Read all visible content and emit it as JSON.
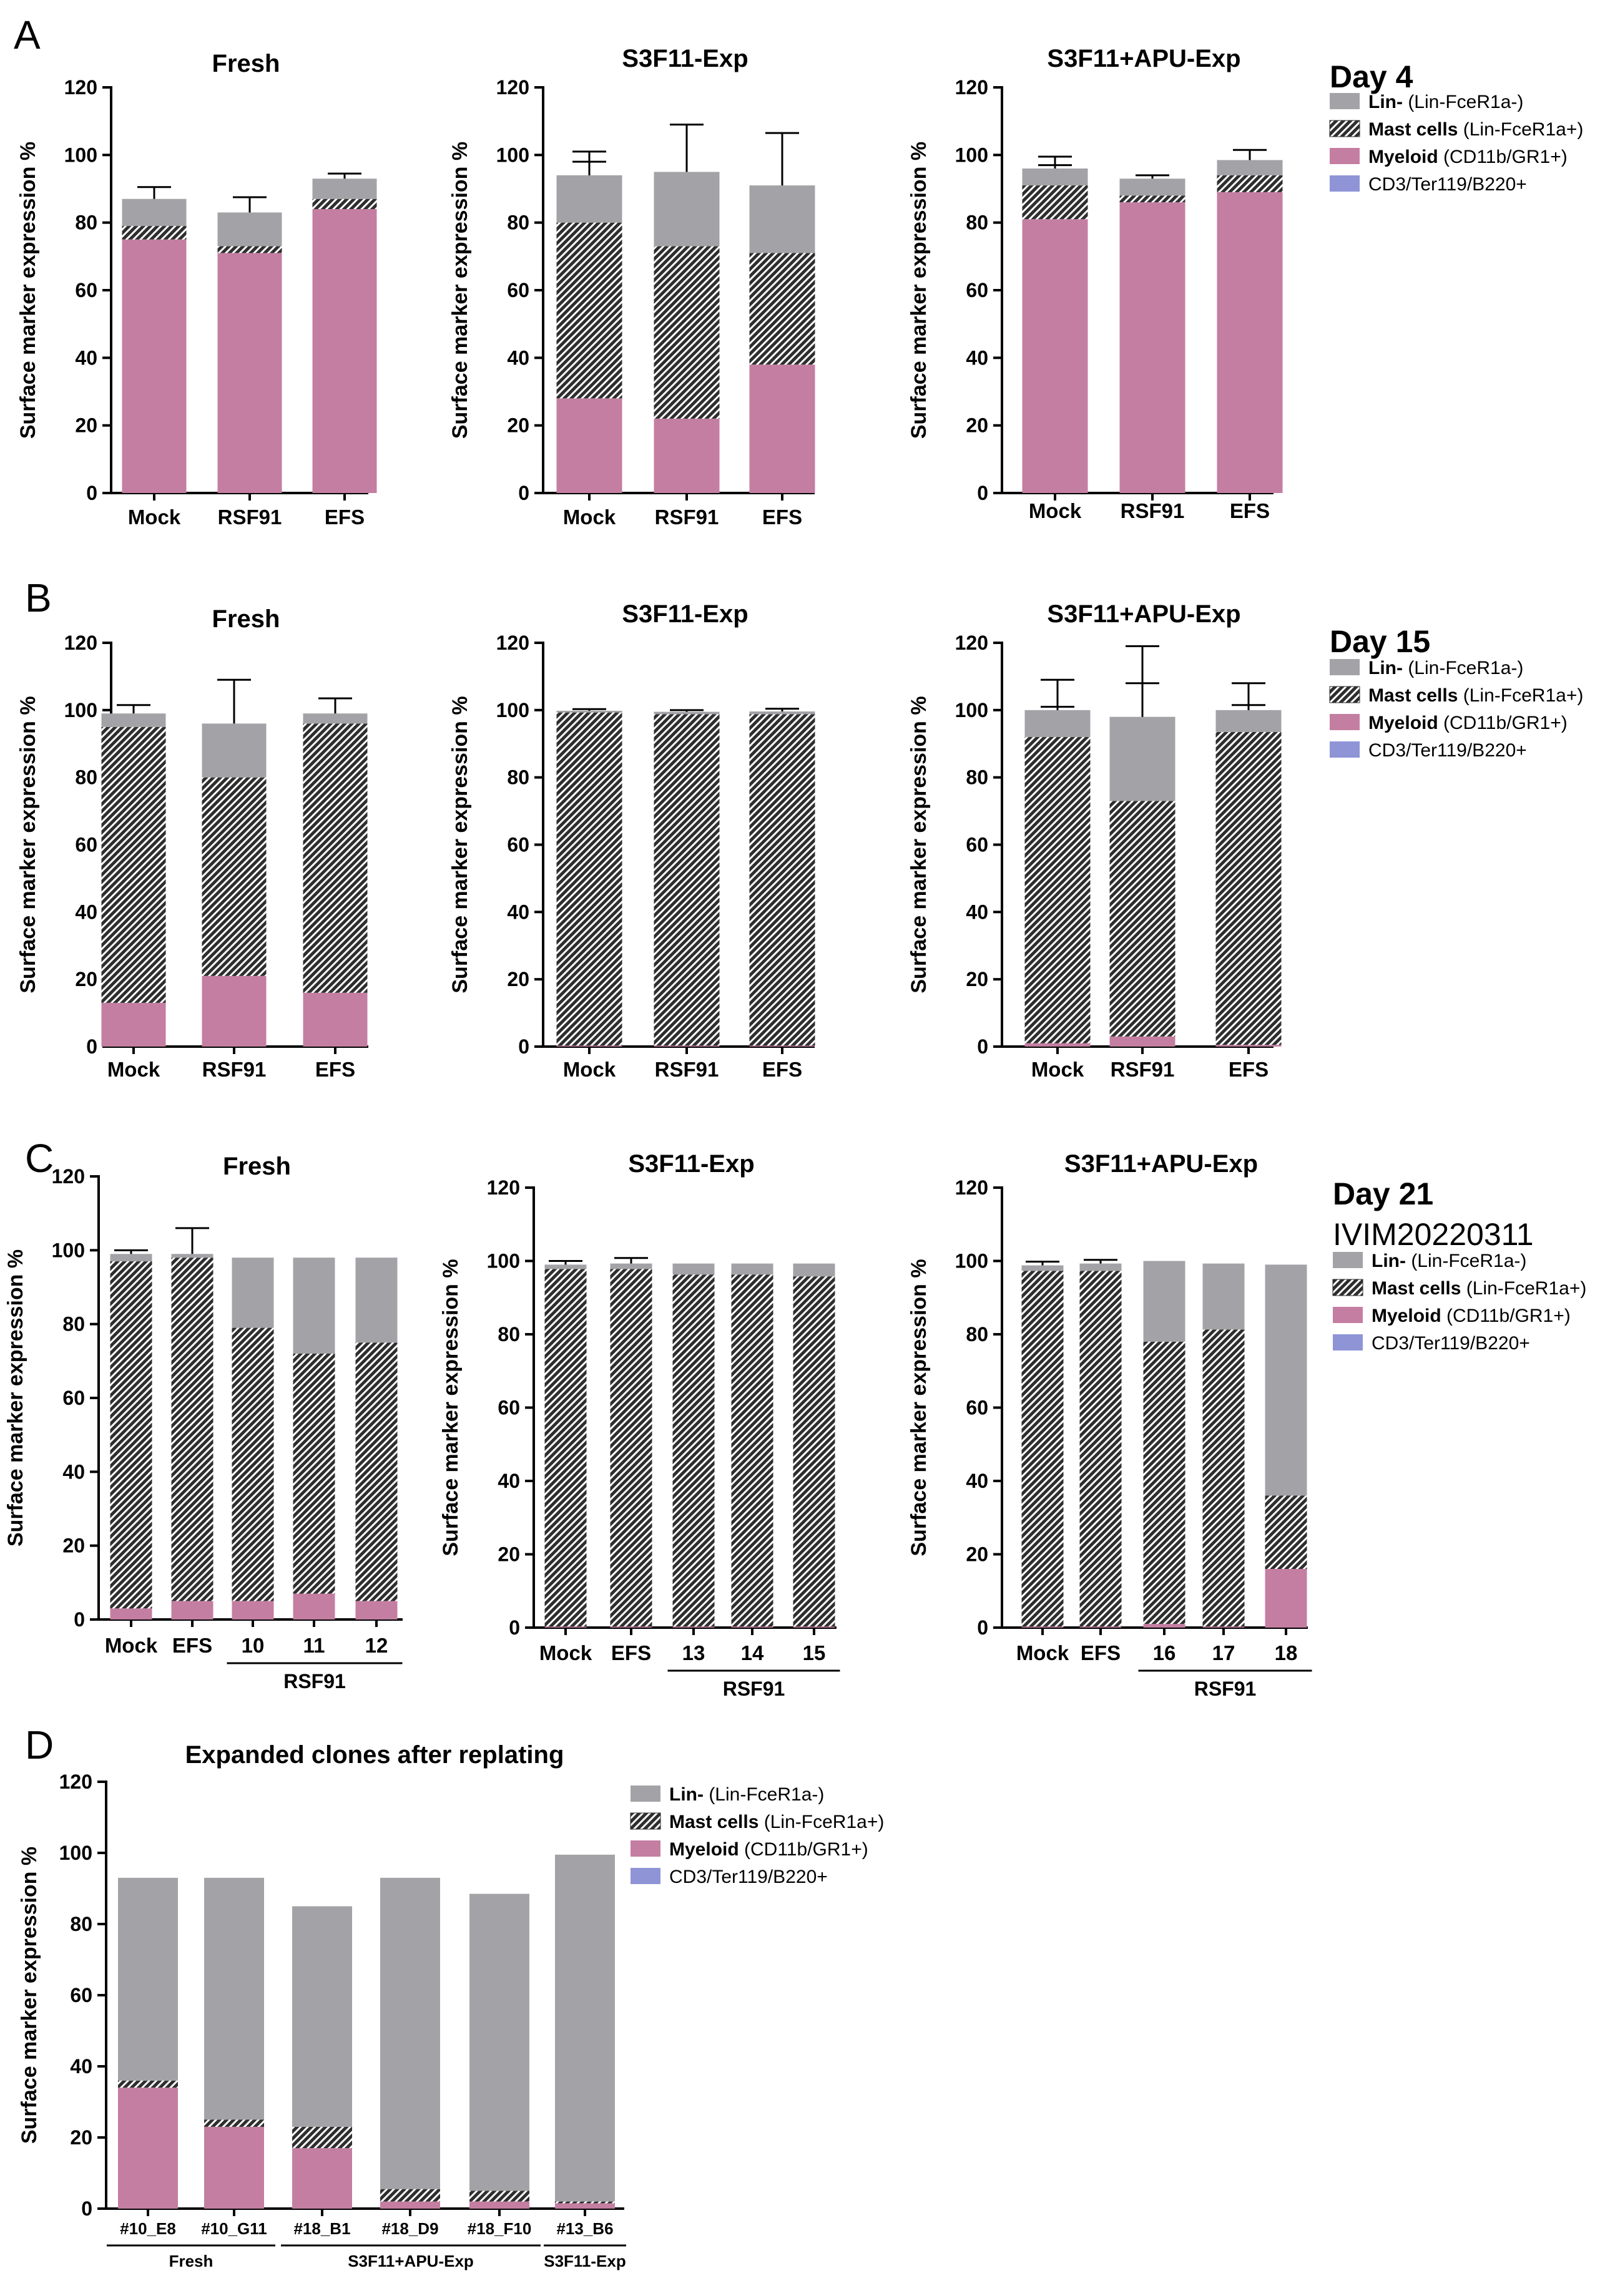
{
  "colors": {
    "lin_neg": "#A3A3A7",
    "mast": "#2E2E2E",
    "myeloid": "#C47EA1",
    "cd3": "#8E94D6",
    "axis": "#000000"
  },
  "legend_entries": [
    {
      "bold": "Lin-",
      "rest": " (Lin-FceR1a-)"
    },
    {
      "bold": "Mast cells",
      "rest": " (Lin-FceR1a+)"
    },
    {
      "bold": "Myeloid",
      "rest": " (CD11b/GR1+)"
    },
    {
      "bold": "",
      "rest": "CD3/Ter119/B220+"
    }
  ],
  "panels": [
    {
      "letter": "A",
      "day_label": "Day 4",
      "sub_label": ""
    },
    {
      "letter": "B",
      "day_label": "Day 15",
      "sub_label": ""
    },
    {
      "letter": "C",
      "day_label": "Day 21",
      "sub_label": "IVIM20220311"
    },
    {
      "letter": "D",
      "day_label": "",
      "sub_label": ""
    }
  ],
  "chart_data": [
    {
      "type": "bar",
      "stacked": true,
      "panel": "A",
      "title": "Fresh",
      "ylabel": "Surface marker expression %",
      "ylim": [
        0,
        120
      ],
      "yticks": [
        0,
        20,
        40,
        60,
        80,
        100,
        120
      ],
      "categories": [
        "Mock",
        "RSF91",
        "EFS"
      ],
      "groups": [],
      "series": [
        {
          "name": "Myeloid (CD11b/GR1+)",
          "values": [
            75,
            71,
            84
          ],
          "error_high": [
            2,
            2,
            2
          ]
        },
        {
          "name": "Mast cells (Lin-FceR1a+)",
          "values": [
            4,
            2,
            3
          ],
          "error_high": [
            1,
            2,
            1
          ]
        },
        {
          "name": "Lin- (Lin-FceR1a-)",
          "values": [
            8,
            10,
            6
          ],
          "error_high": [
            3.5,
            4.5,
            1.5
          ]
        }
      ]
    },
    {
      "type": "bar",
      "stacked": true,
      "panel": "A",
      "title": "S3F11-Exp",
      "ylabel": "Surface marker expression %",
      "ylim": [
        0,
        120
      ],
      "yticks": [
        0,
        20,
        40,
        60,
        80,
        100,
        120
      ],
      "categories": [
        "Mock",
        "RSF91",
        "EFS"
      ],
      "groups": [],
      "series": [
        {
          "name": "Myeloid (CD11b/GR1+)",
          "values": [
            28,
            22,
            38
          ],
          "error_high": [
            18,
            7,
            15
          ]
        },
        {
          "name": "Mast cells (Lin-FceR1a+)",
          "values": [
            52,
            51,
            33
          ],
          "error_high": [
            18,
            8,
            8
          ]
        },
        {
          "name": "Lin- (Lin-FceR1a-)",
          "values": [
            14,
            22,
            20
          ],
          "error_high": [
            7,
            14,
            15.5
          ]
        }
      ]
    },
    {
      "type": "bar",
      "stacked": true,
      "panel": "A",
      "title": "S3F11+APU-Exp",
      "ylabel": "Surface marker expression %",
      "ylim": [
        0,
        120
      ],
      "yticks": [
        0,
        20,
        40,
        60,
        80,
        100,
        120
      ],
      "categories": [
        "Mock",
        "RSF91",
        "EFS"
      ],
      "groups": [],
      "series": [
        {
          "name": "Myeloid (CD11b/GR1+)",
          "values": [
            81,
            86,
            89
          ],
          "error_high": [
            0,
            0,
            0
          ]
        },
        {
          "name": "Mast cells (Lin-FceR1a+)",
          "values": [
            10,
            2,
            5
          ],
          "error_high": [
            6,
            1,
            4
          ]
        },
        {
          "name": "Lin- (Lin-FceR1a-)",
          "values": [
            5,
            5,
            4.5
          ],
          "error_high": [
            3.5,
            1,
            3
          ]
        }
      ]
    },
    {
      "type": "bar",
      "stacked": true,
      "panel": "B",
      "title": "Fresh",
      "ylabel": "Surface marker expression %",
      "ylim": [
        0,
        120
      ],
      "yticks": [
        0,
        20,
        40,
        60,
        80,
        100,
        120
      ],
      "categories": [
        "Mock",
        "RSF91",
        "EFS"
      ],
      "groups": [],
      "series": [
        {
          "name": "Myeloid (CD11b/GR1+)",
          "values": [
            13,
            21,
            16
          ],
          "error_high": [
            7,
            6,
            7
          ]
        },
        {
          "name": "Mast cells (Lin-FceR1a+)",
          "values": [
            82,
            59,
            80
          ],
          "error_high": [
            0,
            14,
            0
          ]
        },
        {
          "name": "Lin- (Lin-FceR1a-)",
          "values": [
            4,
            16,
            3
          ],
          "error_high": [
            2.5,
            13,
            4.5
          ]
        }
      ]
    },
    {
      "type": "bar",
      "stacked": true,
      "panel": "B",
      "title": "S3F11-Exp",
      "ylabel": "Surface marker expression %",
      "ylim": [
        0,
        120
      ],
      "yticks": [
        0,
        20,
        40,
        60,
        80,
        100,
        120
      ],
      "categories": [
        "Mock",
        "RSF91",
        "EFS"
      ],
      "groups": [],
      "series": [
        {
          "name": "Myeloid (CD11b/GR1+)",
          "values": [
            0.3,
            0.3,
            0.3
          ],
          "error_high": [
            0,
            0,
            0
          ]
        },
        {
          "name": "Mast cells (Lin-FceR1a+)",
          "values": [
            99,
            98.5,
            98.5
          ],
          "error_high": [
            0,
            0,
            0
          ]
        },
        {
          "name": "Lin- (Lin-FceR1a-)",
          "values": [
            0.5,
            0.7,
            0.8
          ],
          "error_high": [
            0.5,
            0.5,
            0.8
          ]
        }
      ]
    },
    {
      "type": "bar",
      "stacked": true,
      "panel": "B",
      "title": "S3F11+APU-Exp",
      "ylabel": "Surface marker expression %",
      "ylim": [
        0,
        120
      ],
      "yticks": [
        0,
        20,
        40,
        60,
        80,
        100,
        120
      ],
      "categories": [
        "Mock",
        "RSF91",
        "EFS"
      ],
      "groups": [],
      "series": [
        {
          "name": "Myeloid (CD11b/GR1+)",
          "values": [
            1,
            3,
            0.5
          ],
          "error_high": [
            1,
            6,
            0
          ]
        },
        {
          "name": "Mast cells (Lin-FceR1a+)",
          "values": [
            91,
            70,
            93
          ],
          "error_high": [
            9,
            35,
            8
          ]
        },
        {
          "name": "Lin- (Lin-FceR1a-)",
          "values": [
            8,
            25,
            6.5
          ],
          "error_high": [
            9,
            21,
            8
          ]
        }
      ]
    },
    {
      "type": "bar",
      "stacked": true,
      "panel": "C",
      "title": "Fresh",
      "ylabel": "Surface marker expression %",
      "ylim": [
        0,
        120
      ],
      "yticks": [
        0,
        20,
        40,
        60,
        80,
        100,
        120
      ],
      "categories": [
        "Mock",
        "EFS",
        "10",
        "11",
        "12"
      ],
      "groups": [
        {
          "label": "RSF91",
          "start": 2,
          "end": 4
        }
      ],
      "series": [
        {
          "name": "Myeloid (CD11b/GR1+)",
          "values": [
            3,
            5,
            5,
            7,
            5
          ],
          "error_high": [
            1,
            8,
            0,
            0,
            0
          ]
        },
        {
          "name": "Mast cells (Lin-FceR1a+)",
          "values": [
            94,
            93,
            74,
            65,
            70
          ],
          "error_high": [
            0,
            0,
            0,
            0,
            0
          ]
        },
        {
          "name": "Lin- (Lin-FceR1a-)",
          "values": [
            2,
            1,
            19,
            26,
            23
          ],
          "error_high": [
            1,
            7,
            0,
            0,
            0
          ]
        }
      ]
    },
    {
      "type": "bar",
      "stacked": true,
      "panel": "C",
      "title": "S3F11-Exp",
      "ylabel": "Surface marker expression %",
      "ylim": [
        0,
        120
      ],
      "yticks": [
        0,
        20,
        40,
        60,
        80,
        100,
        120
      ],
      "categories": [
        "Mock",
        "EFS",
        "13",
        "14",
        "15"
      ],
      "groups": [
        {
          "label": "RSF91",
          "start": 2,
          "end": 4
        }
      ],
      "series": [
        {
          "name": "Myeloid (CD11b/GR1+)",
          "values": [
            0.3,
            0.3,
            0.3,
            0.3,
            0.3
          ],
          "error_high": [
            0,
            0,
            0,
            0,
            0
          ]
        },
        {
          "name": "Mast cells (Lin-FceR1a+)",
          "values": [
            97.5,
            97.5,
            96,
            96,
            95.5
          ],
          "error_high": [
            0,
            0,
            0,
            0,
            0
          ]
        },
        {
          "name": "Lin- (Lin-FceR1a-)",
          "values": [
            1.2,
            1.5,
            3,
            3,
            3.5
          ],
          "error_high": [
            1,
            1.5,
            0,
            0,
            0
          ]
        }
      ]
    },
    {
      "type": "bar",
      "stacked": true,
      "panel": "C",
      "title": "S3F11+APU-Exp",
      "ylabel": "Surface marker expression %",
      "ylim": [
        0,
        120
      ],
      "yticks": [
        0,
        20,
        40,
        60,
        80,
        100,
        120
      ],
      "categories": [
        "Mock",
        "EFS",
        "16",
        "17",
        "18"
      ],
      "groups": [
        {
          "label": "RSF91",
          "start": 2,
          "end": 4
        }
      ],
      "series": [
        {
          "name": "Myeloid (CD11b/GR1+)",
          "values": [
            0.3,
            0.3,
            1,
            0.3,
            16
          ],
          "error_high": [
            0,
            0,
            0,
            0,
            0
          ]
        },
        {
          "name": "Mast cells (Lin-FceR1a+)",
          "values": [
            97,
            97,
            77,
            81,
            20
          ],
          "error_high": [
            0,
            0,
            0,
            0,
            0
          ]
        },
        {
          "name": "Lin- (Lin-FceR1a-)",
          "values": [
            1.5,
            2,
            22,
            18,
            63
          ],
          "error_high": [
            1,
            1,
            0,
            0,
            0
          ]
        }
      ]
    },
    {
      "type": "bar",
      "stacked": true,
      "panel": "D",
      "title": "Expanded clones after replating",
      "ylabel": "Surface marker expression %",
      "ylim": [
        0,
        120
      ],
      "yticks": [
        0,
        20,
        40,
        60,
        80,
        100,
        120
      ],
      "categories": [
        "#10_E8",
        "#10_G11",
        "#18_B1",
        "#18_D9",
        "#18_F10",
        "#13_B6"
      ],
      "groups": [
        {
          "label": "Fresh",
          "start": 0,
          "end": 1
        },
        {
          "label": "S3F11+APU-Exp",
          "start": 2,
          "end": 4
        },
        {
          "label": "S3F11-Exp",
          "start": 5,
          "end": 5
        }
      ],
      "series": [
        {
          "name": "Myeloid (CD11b/GR1+)",
          "values": [
            34,
            23,
            17,
            2,
            2,
            1.5
          ],
          "error_high": [
            0,
            0,
            0,
            0,
            0,
            0
          ]
        },
        {
          "name": "Mast cells (Lin-FceR1a+)",
          "values": [
            2,
            2,
            6,
            3.5,
            3,
            0.5
          ],
          "error_high": [
            0,
            0,
            0,
            0,
            0,
            0
          ]
        },
        {
          "name": "Lin- (Lin-FceR1a-)",
          "values": [
            57,
            68,
            62,
            87.5,
            83.5,
            97.5
          ],
          "error_high": [
            0,
            0,
            0,
            0,
            0,
            0
          ]
        }
      ]
    }
  ]
}
